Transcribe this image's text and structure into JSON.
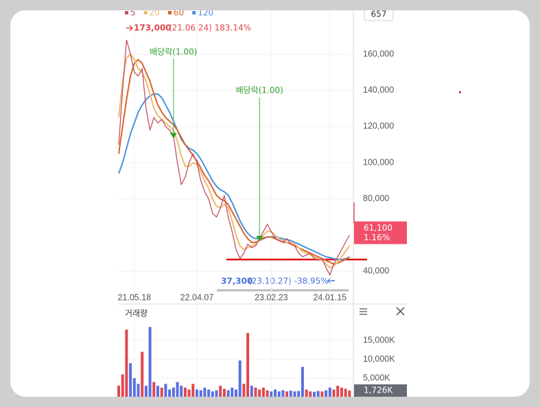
{
  "chart_data": {
    "type": "line",
    "badge": "657",
    "categories": [
      null,
      null,
      null,
      null,
      "21.05.18",
      null,
      null,
      null,
      null,
      null,
      null,
      null,
      null,
      null,
      null,
      null,
      null,
      null,
      null,
      null,
      "22.04.07",
      null,
      null,
      null,
      null,
      null,
      null,
      null,
      null,
      null,
      null,
      null,
      null,
      null,
      null,
      null,
      null,
      null,
      null,
      "23.02.23",
      null,
      null,
      null,
      null,
      null,
      null,
      null,
      null,
      null,
      null,
      null,
      null,
      null,
      null,
      "24.01.15",
      null,
      null,
      null,
      null,
      null
    ],
    "ylim": [
      28700,
      186200
    ],
    "yticks": [
      {
        "value": 40000,
        "label": "40,000"
      },
      {
        "value": 80000,
        "label": "80,000"
      },
      {
        "value": 100000,
        "label": "100,000"
      },
      {
        "value": 120000,
        "label": "120,000"
      },
      {
        "value": 140000,
        "label": "140,000"
      },
      {
        "value": 160000,
        "label": "160,000"
      }
    ],
    "grid": true,
    "series": [
      {
        "name": "5",
        "color": "#c0505f",
        "values": [
          110000,
          140000,
          168000,
          160000,
          150000,
          148000,
          152000,
          130000,
          118000,
          125000,
          122000,
          124000,
          120000,
          118000,
          115000,
          100000,
          88000,
          92000,
          100000,
          105000,
          100000,
          90000,
          84000,
          80000,
          72000,
          70000,
          75000,
          82000,
          70000,
          62000,
          52000,
          47000,
          50000,
          55000,
          53000,
          54000,
          58000,
          62000,
          66000,
          62000,
          58000,
          57000,
          56000,
          58000,
          55000,
          54000,
          50000,
          48000,
          49000,
          50000,
          47000,
          46000,
          47000,
          42000,
          38000,
          44000,
          48000,
          52000,
          56000,
          60000
        ]
      },
      {
        "name": "20",
        "color": "#f2b66b",
        "values": [
          125000,
          145000,
          158000,
          160000,
          157000,
          152000,
          150000,
          145000,
          138000,
          130000,
          126000,
          124000,
          122000,
          120000,
          118000,
          112000,
          104000,
          98000,
          98000,
          100000,
          99000,
          95000,
          90000,
          86000,
          80000,
          76000,
          75000,
          77000,
          75000,
          68000,
          60000,
          54000,
          52000,
          53000,
          54000,
          55000,
          57000,
          60000,
          62000,
          62000,
          60000,
          58000,
          57000,
          56000,
          56000,
          55000,
          53000,
          51000,
          50000,
          49000,
          48000,
          47000,
          46000,
          44000,
          42000,
          43000,
          45000,
          48000,
          51000,
          54000
        ]
      },
      {
        "name": "60",
        "color": "#d6642a",
        "values": [
          105000,
          120000,
          135000,
          148000,
          155000,
          157000,
          155000,
          150000,
          145000,
          138000,
          132000,
          128000,
          125000,
          123000,
          121000,
          118000,
          114000,
          110000,
          107000,
          104000,
          101000,
          97000,
          93000,
          90000,
          86000,
          82000,
          80000,
          79000,
          77000,
          73000,
          69000,
          65000,
          61000,
          58000,
          56000,
          56000,
          57000,
          58000,
          59000,
          59000,
          58000,
          57000,
          56000,
          56000,
          55000,
          54000,
          53000,
          52000,
          51000,
          50000,
          49000,
          48000,
          47000,
          46000,
          45000,
          44000,
          44500,
          45500,
          46500,
          48000
        ]
      },
      {
        "name": "120",
        "color": "#4a8fe0",
        "values": [
          94000,
          100000,
          108000,
          116000,
          122000,
          128000,
          132000,
          135000,
          137000,
          138000,
          138000,
          136000,
          132000,
          128000,
          123000,
          118000,
          113000,
          110000,
          108000,
          107000,
          105000,
          102000,
          98000,
          94000,
          90000,
          87000,
          85000,
          84000,
          82000,
          78000,
          73000,
          68000,
          64000,
          61000,
          59000,
          58000,
          58000,
          58500,
          59000,
          59000,
          59000,
          58500,
          58000,
          57500,
          57000,
          56000,
          55000,
          54000,
          53000,
          52000,
          51000,
          50000,
          49000,
          48000,
          47500,
          47000,
          46500,
          46500,
          47000,
          47500
        ]
      }
    ],
    "max_label": "173,000",
    "max_detail": "(21.06.24) 183.14%",
    "min_label": "37,300",
    "min_detail": "(23.10.27) -38.95%",
    "events": [
      {
        "index": 14,
        "label": "배당락(1.00)"
      },
      {
        "index": 36,
        "label": "배당락(1.00)"
      }
    ],
    "support_line": 46500,
    "current": {
      "value": 61100,
      "label": "61,100"
    },
    "change": {
      "value": 1.16,
      "label": "1.16%"
    },
    "volume": {
      "title": "거래량",
      "ylim": [
        0,
        20500
      ],
      "yticks": [
        {
          "value": 5000,
          "label": "5,000K"
        },
        {
          "value": 10000,
          "label": "10,000K"
        },
        {
          "value": 15000,
          "label": "15,000K"
        }
      ],
      "up_color": "#e0474f",
      "down_color": "#5a6fe0",
      "values": [
        3000,
        6000,
        17900,
        9000,
        5000,
        3500,
        12000,
        3000,
        18600,
        4000,
        3000,
        2500,
        3500,
        2000,
        2500,
        4000,
        3000,
        2500,
        2000,
        3500,
        2000,
        1800,
        2500,
        2000,
        1500,
        1800,
        3000,
        2200,
        1800,
        2500,
        2000,
        9700,
        3500,
        17000,
        3000,
        2500,
        2000,
        2500,
        1800,
        1500,
        2000,
        1500,
        1800,
        1500,
        1700,
        1500,
        1600,
        8000,
        2000,
        1500,
        1400,
        1600,
        1500,
        1800,
        2500,
        2000,
        3000,
        2500,
        2200,
        1726
      ],
      "current": {
        "value": 1726,
        "label": "1,726K"
      }
    }
  }
}
